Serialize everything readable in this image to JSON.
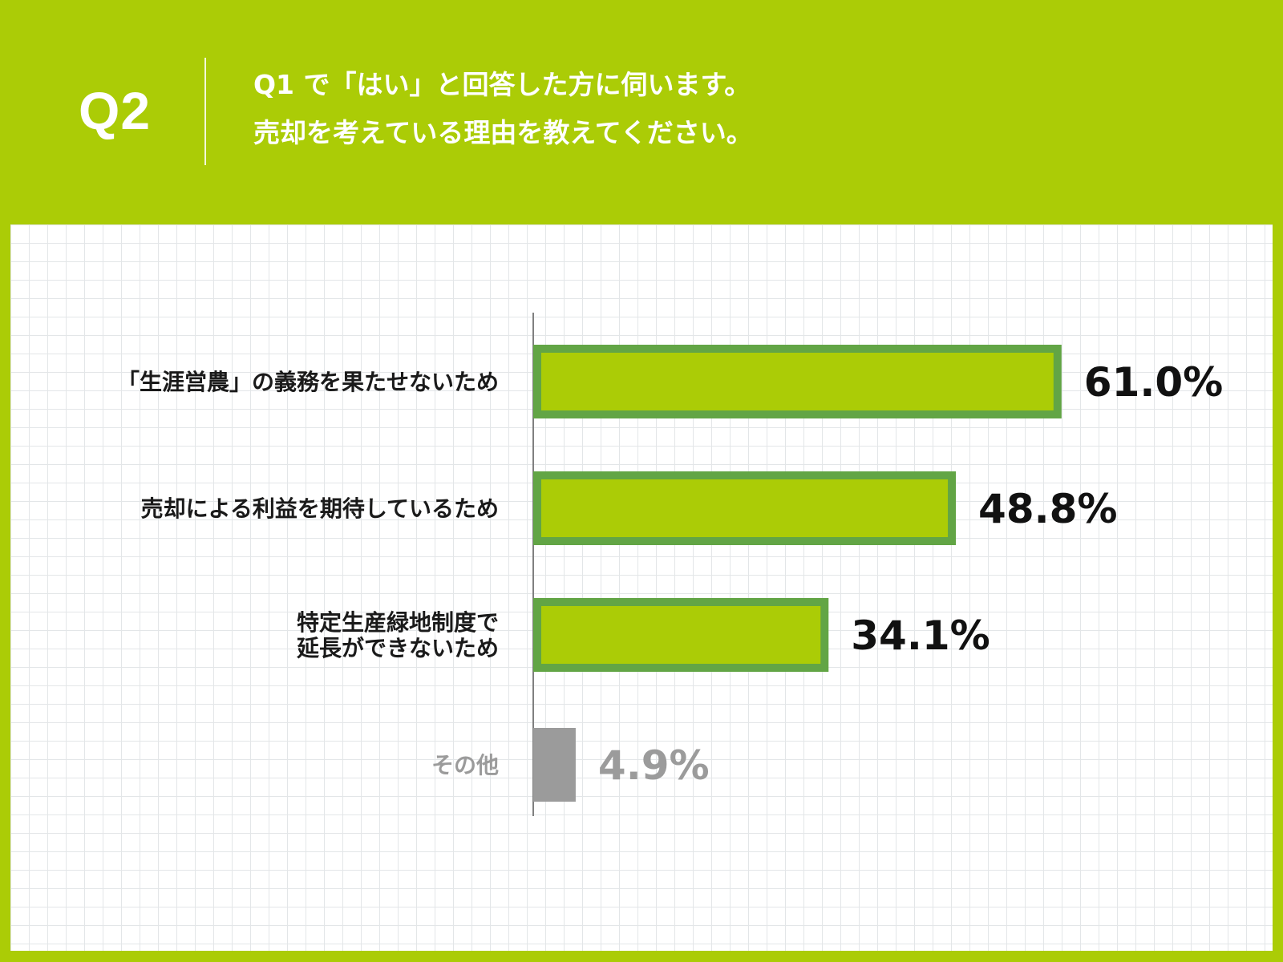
{
  "header": {
    "q_number": "Q2",
    "question_line1": "Q1 で「はい」と回答した方に伺います。",
    "question_line2": "売却を考えている理由を教えてください。"
  },
  "colors": {
    "background": "#abcc06",
    "bar_fill": "#abcc06",
    "bar_border": "#62a545",
    "other_bar": "#9b9b9b",
    "value_text": "#111111",
    "other_text": "#9b9b9b"
  },
  "chart_data": {
    "type": "bar",
    "orientation": "horizontal",
    "categories": [
      [
        "「生涯営農」の義務を果たせないため"
      ],
      [
        "売却による利益を期待しているため"
      ],
      [
        "特定生産緑地制度で",
        "延長ができないため"
      ],
      [
        "その他"
      ]
    ],
    "values": [
      61.0,
      48.8,
      34.1,
      4.9
    ],
    "value_labels": [
      "61.0%",
      "48.8%",
      "34.1%",
      "4.9%"
    ],
    "highlight": [
      true,
      true,
      true,
      false
    ],
    "xlim": [
      0,
      100
    ],
    "grid": true,
    "legend": "none"
  }
}
